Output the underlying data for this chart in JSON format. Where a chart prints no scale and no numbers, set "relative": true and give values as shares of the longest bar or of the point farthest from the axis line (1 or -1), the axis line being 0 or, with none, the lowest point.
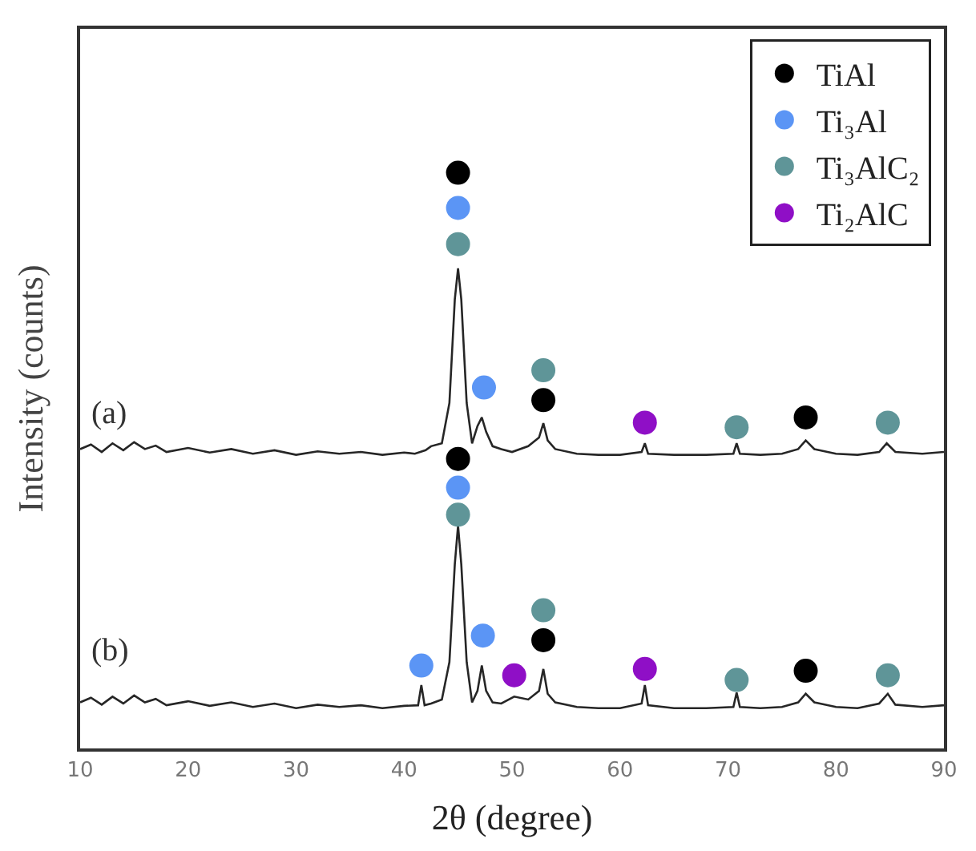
{
  "chart_data": {
    "type": "line",
    "relative": true,
    "xlabel": "2θ (degree)",
    "ylabel": "Intensity (counts)",
    "xlim": [
      10,
      90
    ],
    "xticks": [
      10,
      20,
      30,
      40,
      50,
      60,
      70,
      80,
      90
    ],
    "legend": "top right",
    "grid": false,
    "series": [
      {
        "color": "#262626",
        "marker": "none",
        "x": [
          10,
          11,
          12,
          13,
          14,
          15,
          16,
          17,
          18,
          20,
          22,
          24,
          26,
          28,
          30,
          32,
          34,
          36,
          38,
          40,
          41,
          42,
          42.5,
          43.5,
          44.2,
          44.7,
          45.0,
          45.3,
          45.8,
          46.3,
          46.8,
          47.2,
          47.6,
          48.2,
          49,
          50,
          51.5,
          52.5,
          52.9,
          53.3,
          54,
          56,
          58,
          60,
          62,
          62.3,
          62.6,
          65,
          68,
          70.5,
          70.8,
          71.1,
          73,
          75,
          76.5,
          77.2,
          78,
          80,
          82,
          84,
          84.7,
          85.5,
          88,
          90
        ],
        "values": [
          0.52,
          0.528,
          0.515,
          0.53,
          0.518,
          0.532,
          0.52,
          0.526,
          0.515,
          0.522,
          0.514,
          0.52,
          0.512,
          0.518,
          0.51,
          0.516,
          0.512,
          0.515,
          0.51,
          0.514,
          0.512,
          0.518,
          0.525,
          0.53,
          0.6,
          0.78,
          0.834,
          0.78,
          0.6,
          0.53,
          0.56,
          0.575,
          0.55,
          0.525,
          0.52,
          0.515,
          0.525,
          0.54,
          0.565,
          0.535,
          0.52,
          0.512,
          0.51,
          0.51,
          0.515,
          0.53,
          0.512,
          0.51,
          0.51,
          0.512,
          0.53,
          0.512,
          0.51,
          0.512,
          0.52,
          0.535,
          0.52,
          0.512,
          0.51,
          0.515,
          0.53,
          0.515,
          0.512,
          0.515
        ]
      },
      {
        "color": "#262626",
        "marker": "none",
        "x": [
          10,
          11,
          12,
          13,
          14,
          15,
          16,
          17,
          18,
          20,
          22,
          24,
          26,
          28,
          30,
          32,
          34,
          36,
          38,
          40,
          41.3,
          41.6,
          41.9,
          42.5,
          43.5,
          44.2,
          44.7,
          45.0,
          45.3,
          45.8,
          46.3,
          46.8,
          47.2,
          47.6,
          48.2,
          49,
          50.2,
          51.5,
          52.5,
          52.9,
          53.3,
          54,
          56,
          58,
          60,
          62,
          62.3,
          62.6,
          65,
          68,
          70.5,
          70.8,
          71.1,
          73,
          75,
          76.5,
          77.2,
          78,
          80,
          82,
          84,
          84.8,
          85.5,
          88,
          90
        ],
        "values": [
          0.08,
          0.088,
          0.076,
          0.09,
          0.078,
          0.092,
          0.08,
          0.086,
          0.075,
          0.082,
          0.074,
          0.08,
          0.072,
          0.078,
          0.07,
          0.076,
          0.072,
          0.075,
          0.07,
          0.074,
          0.075,
          0.11,
          0.075,
          0.078,
          0.085,
          0.15,
          0.32,
          0.387,
          0.32,
          0.15,
          0.08,
          0.1,
          0.144,
          0.1,
          0.08,
          0.078,
          0.09,
          0.085,
          0.1,
          0.138,
          0.095,
          0.08,
          0.072,
          0.07,
          0.07,
          0.078,
          0.11,
          0.075,
          0.07,
          0.07,
          0.072,
          0.097,
          0.072,
          0.07,
          0.072,
          0.08,
          0.095,
          0.08,
          0.072,
          0.07,
          0.078,
          0.095,
          0.076,
          0.072,
          0.075
        ]
      },
      {
        "type": "scatter",
        "name": "TiAl",
        "color": "#000000",
        "marker": "circle",
        "x": [
          45,
          52.9,
          77.2,
          45,
          52.9,
          77.2
        ],
        "values": [
          1.0,
          0.605,
          0.575,
          0.503,
          0.188,
          0.135
        ]
      },
      {
        "type": "scatter",
        "name": "Ti₃Al",
        "color": "#5b95f5",
        "marker": "circle",
        "x": [
          45,
          47.4,
          45,
          41.6,
          47.3
        ],
        "values": [
          0.939,
          0.627,
          0.453,
          0.144,
          0.196
        ]
      },
      {
        "type": "scatter",
        "name": "Ti₃AlC₂",
        "color": "#5f9598",
        "marker": "circle",
        "x": [
          45,
          52.9,
          70.8,
          84.8,
          45,
          52.9,
          70.8,
          84.8
        ],
        "values": [
          0.876,
          0.657,
          0.558,
          0.566,
          0.406,
          0.24,
          0.119,
          0.127
        ]
      },
      {
        "type": "scatter",
        "name": "Ti₂AlC",
        "color": "#8f0fc6",
        "marker": "circle",
        "x": [
          62.3,
          50.2,
          62.3
        ],
        "values": [
          0.566,
          0.127,
          0.138
        ]
      }
    ],
    "annotations": [
      "(a)",
      "(b)"
    ]
  }
}
